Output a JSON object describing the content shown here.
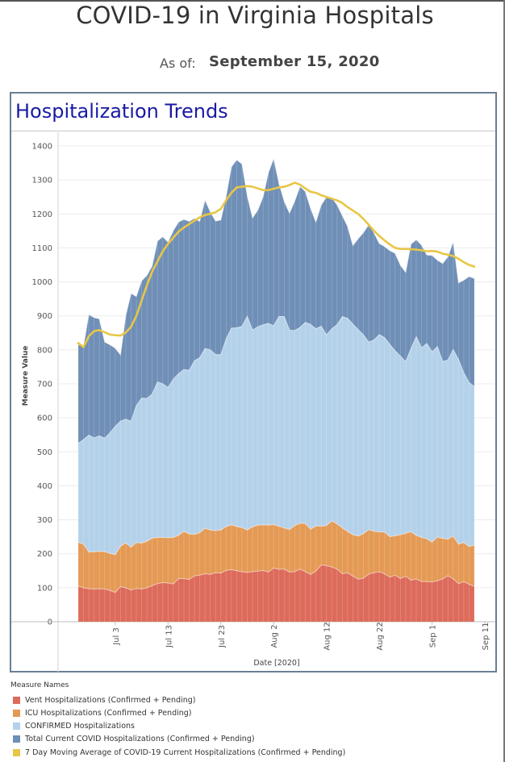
{
  "header": {
    "title": "COVID-19 in Virginia Hospitals",
    "as_of_label": "As of:",
    "as_of_date": "September 15, 2020"
  },
  "panel": {
    "title": "Hospitalization Trends"
  },
  "legend": {
    "title": "Measure Names",
    "items": [
      {
        "label": "Vent Hospitalizations (Confirmed + Pending)",
        "color": "#dd6b5b"
      },
      {
        "label": "ICU Hospitalizations (Confirmed + Pending)",
        "color": "#e49a55"
      },
      {
        "label": "CONFIRMED Hospitalizations",
        "color": "#b4d1ea"
      },
      {
        "label": "Total Current COVID Hospitalizations (Confirmed + Pending)",
        "color": "#6f8fb7"
      },
      {
        "label": "7 Day Moving Average of COVID-19 Current Hospitalizations (Confirmed + Pending)",
        "color": "#e8c646"
      }
    ]
  },
  "chart_data": {
    "type": "area",
    "xlabel": "Date [2020]",
    "ylabel": "Measure Value",
    "ylim": [
      0,
      1400
    ],
    "yticks": [
      0,
      100,
      200,
      300,
      400,
      500,
      600,
      700,
      800,
      900,
      1000,
      1100,
      1200,
      1300,
      1400
    ],
    "x_start": "2020-06-26",
    "xticks": [
      {
        "label": "Jul 3",
        "date": "2020-07-03"
      },
      {
        "label": "Jul 13",
        "date": "2020-07-13"
      },
      {
        "label": "Jul 23",
        "date": "2020-07-23"
      },
      {
        "label": "Aug 2",
        "date": "2020-08-02"
      },
      {
        "label": "Aug 12",
        "date": "2020-08-12"
      },
      {
        "label": "Aug 22",
        "date": "2020-08-22"
      },
      {
        "label": "Sep 1",
        "date": "2020-09-01"
      },
      {
        "label": "Sep 11",
        "date": "2020-09-11"
      }
    ],
    "grid": true,
    "series": [
      {
        "name": "Vent Hospitalizations (Confirmed + Pending)",
        "color": "#dd6b5b",
        "values": [
          105,
          100,
          97,
          96,
          97,
          96,
          92,
          86,
          103,
          100,
          93,
          98,
          96,
          100,
          106,
          112,
          115,
          114,
          111,
          127,
          127,
          124,
          135,
          137,
          141,
          139,
          144,
          143,
          151,
          153,
          150,
          147,
          145,
          147,
          149,
          151,
          146,
          158,
          154,
          155,
          146,
          147,
          155,
          147,
          139,
          149,
          167,
          165,
          161,
          155,
          141,
          144,
          134,
          125,
          128,
          140,
          144,
          147,
          141,
          131,
          137,
          127,
          134,
          122,
          126,
          118,
          118,
          117,
          120,
          126,
          135,
          126,
          112,
          118,
          110,
          104
        ]
      },
      {
        "name": "ICU Hospitalizations (Confirmed + Pending)",
        "color": "#e49a55",
        "values": [
          234,
          228,
          205,
          206,
          207,
          206,
          201,
          197,
          222,
          232,
          219,
          233,
          231,
          237,
          246,
          248,
          248,
          247,
          248,
          254,
          266,
          258,
          257,
          262,
          275,
          270,
          268,
          270,
          280,
          285,
          280,
          277,
          270,
          279,
          284,
          285,
          284,
          286,
          281,
          276,
          271,
          283,
          290,
          289,
          272,
          282,
          281,
          283,
          297,
          288,
          276,
          266,
          256,
          252,
          259,
          271,
          266,
          264,
          264,
          250,
          253,
          256,
          260,
          265,
          254,
          248,
          244,
          234,
          249,
          245,
          243,
          252,
          228,
          233,
          221,
          225
        ]
      },
      {
        "name": "CONFIRMED Hospitalizations",
        "color": "#b4d1ea",
        "values": [
          525,
          536,
          549,
          541,
          547,
          540,
          556,
          575,
          590,
          596,
          590,
          636,
          658,
          657,
          670,
          706,
          700,
          689,
          714,
          730,
          742,
          740,
          768,
          777,
          804,
          800,
          786,
          786,
          832,
          864,
          865,
          869,
          899,
          858,
          868,
          874,
          878,
          871,
          898,
          898,
          858,
          857,
          866,
          881,
          875,
          862,
          870,
          844,
          862,
          874,
          898,
          893,
          876,
          860,
          844,
          823,
          829,
          845,
          836,
          816,
          797,
          782,
          765,
          804,
          839,
          806,
          819,
          794,
          810,
          766,
          770,
          801,
          772,
          733,
          704,
          692
        ]
      },
      {
        "name": "Total Current COVID Hospitalizations (Confirmed + Pending)",
        "color": "#6f8fb7",
        "values": [
          815,
          812,
          904,
          895,
          891,
          823,
          815,
          805,
          785,
          901,
          966,
          957,
          1003,
          1019,
          1047,
          1120,
          1133,
          1117,
          1151,
          1176,
          1184,
          1178,
          1187,
          1178,
          1241,
          1206,
          1179,
          1182,
          1252,
          1338,
          1359,
          1347,
          1253,
          1188,
          1211,
          1250,
          1321,
          1363,
          1290,
          1237,
          1202,
          1238,
          1281,
          1266,
          1216,
          1176,
          1226,
          1250,
          1248,
          1227,
          1195,
          1163,
          1107,
          1127,
          1145,
          1168,
          1144,
          1113,
          1104,
          1092,
          1084,
          1049,
          1028,
          1111,
          1124,
          1108,
          1079,
          1078,
          1064,
          1054,
          1074,
          1118,
          997,
          1005,
          1016,
          1010
        ]
      },
      {
        "name": "7 Day Moving Average of COVID-19 Current Hospitalizations (Confirmed + Pending)",
        "color": "#e8c646",
        "values": [
          820,
          808,
          840,
          855,
          858,
          852,
          845,
          843,
          842,
          851,
          868,
          900,
          945,
          990,
          1030,
          1060,
          1090,
          1112,
          1130,
          1148,
          1160,
          1170,
          1180,
          1190,
          1197,
          1200,
          1205,
          1215,
          1240,
          1262,
          1278,
          1280,
          1282,
          1280,
          1275,
          1270,
          1270,
          1274,
          1278,
          1280,
          1285,
          1292,
          1286,
          1275,
          1265,
          1262,
          1255,
          1250,
          1245,
          1240,
          1232,
          1220,
          1210,
          1200,
          1185,
          1168,
          1150,
          1135,
          1122,
          1110,
          1100,
          1097,
          1097,
          1096,
          1095,
          1093,
          1090,
          1091,
          1089,
          1083,
          1080,
          1076,
          1068,
          1058,
          1050,
          1045
        ]
      }
    ]
  }
}
